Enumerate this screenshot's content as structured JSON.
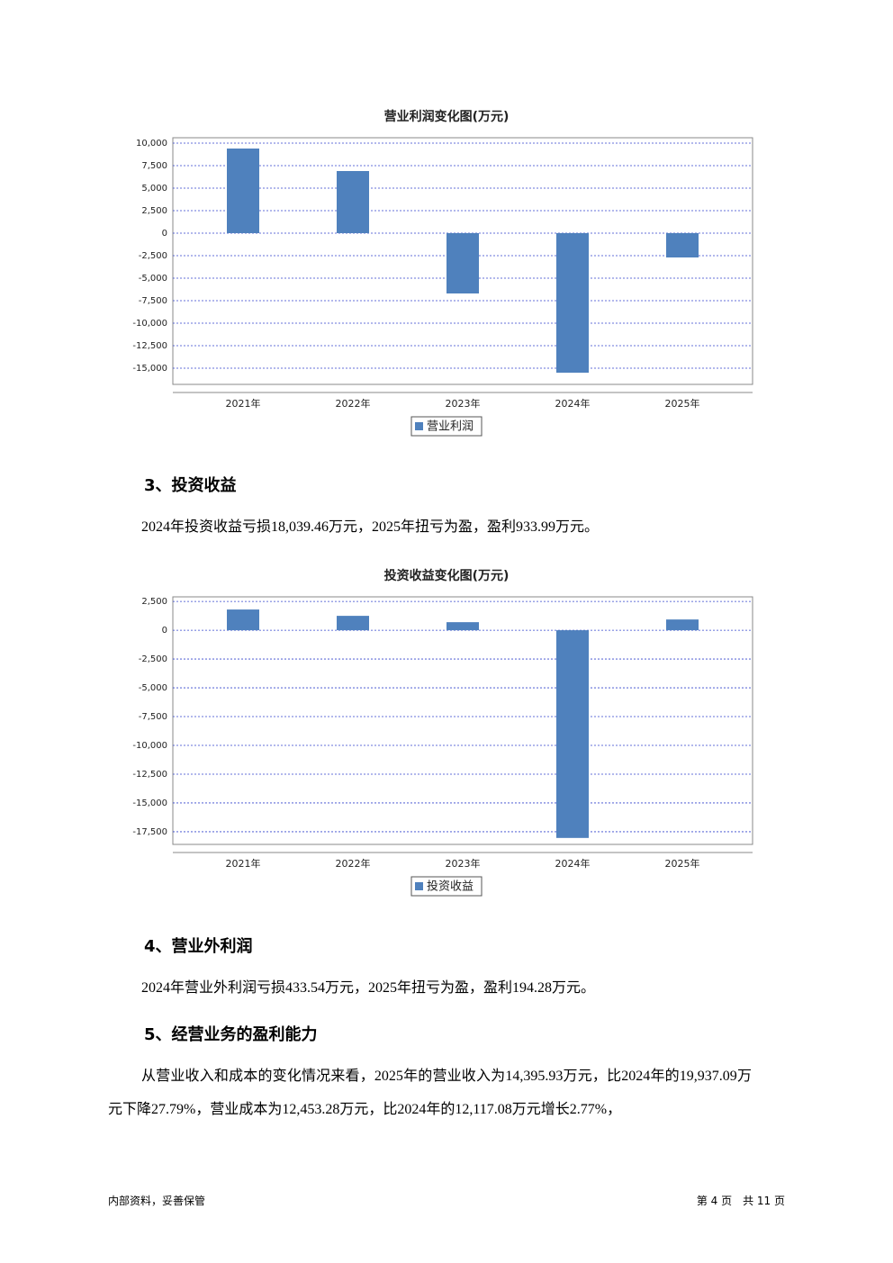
{
  "chart_data": [
    {
      "type": "bar",
      "title": "营业利润变化图(万元)",
      "categories": [
        "2021年",
        "2022年",
        "2023年",
        "2024年",
        "2025年"
      ],
      "series": [
        {
          "name": "营业利润",
          "color": "#4f81bd",
          "values": [
            9400,
            6900,
            -6700,
            -15500,
            -2700
          ]
        }
      ],
      "ylim": [
        -16800,
        10600
      ],
      "yticks": [
        {
          "value": 10000,
          "label": "10,000"
        },
        {
          "value": 7500,
          "label": "7,500"
        },
        {
          "value": 5000,
          "label": "5,000"
        },
        {
          "value": 2500,
          "label": "2,500"
        },
        0,
        {
          "value": -2500,
          "label": "-2,500"
        },
        {
          "value": -5000,
          "label": "-5,000"
        },
        {
          "value": -7500,
          "label": "-7,500"
        },
        {
          "value": -10000,
          "label": "-10,000"
        },
        {
          "value": -12500,
          "label": "-12,500"
        },
        {
          "value": -15000,
          "label": "-15,000"
        }
      ],
      "grid": true
    },
    {
      "type": "bar",
      "title": "投资收益变化图(万元)",
      "categories": [
        "2021年",
        "2022年",
        "2023年",
        "2024年",
        "2025年"
      ],
      "series": [
        {
          "name": "投资收益",
          "color": "#4f81bd",
          "values": [
            1800,
            1250,
            700,
            -18039.46,
            933.99
          ]
        }
      ],
      "ylim": [
        -18600,
        2900
      ],
      "yticks": [
        {
          "value": 2500,
          "label": "2,500"
        },
        0,
        {
          "value": -2500,
          "label": "-2,500"
        },
        {
          "value": -5000,
          "label": "-5,000"
        },
        {
          "value": -7500,
          "label": "-7,500"
        },
        {
          "value": -10000,
          "label": "-10,000"
        },
        {
          "value": -12500,
          "label": "-12,500"
        },
        {
          "value": -15000,
          "label": "-15,000"
        },
        {
          "value": -17500,
          "label": "-17,500"
        }
      ],
      "grid": true
    }
  ],
  "sections": [
    {
      "heading": "3、投资收益",
      "text": "2024年投资收益亏损18,039.46万元，2025年扭亏为盈，盈利933.99万元。"
    },
    {
      "heading": "4、营业外利润",
      "text": "2024年营业外利润亏损433.54万元，2025年扭亏为盈，盈利194.28万元。"
    },
    {
      "heading": "5、经营业务的盈利能力",
      "text": "从营业收入和成本的变化情况来看，2025年的营业收入为14,395.93万元，比2024年的19,937.09万元下降27.79%，营业成本为12,453.28万元，比2024年的12,117.08万元增长2.77%，"
    }
  ],
  "footer": {
    "left": "内部资料，妥善保管",
    "right": "第 4 页　共 11 页"
  }
}
